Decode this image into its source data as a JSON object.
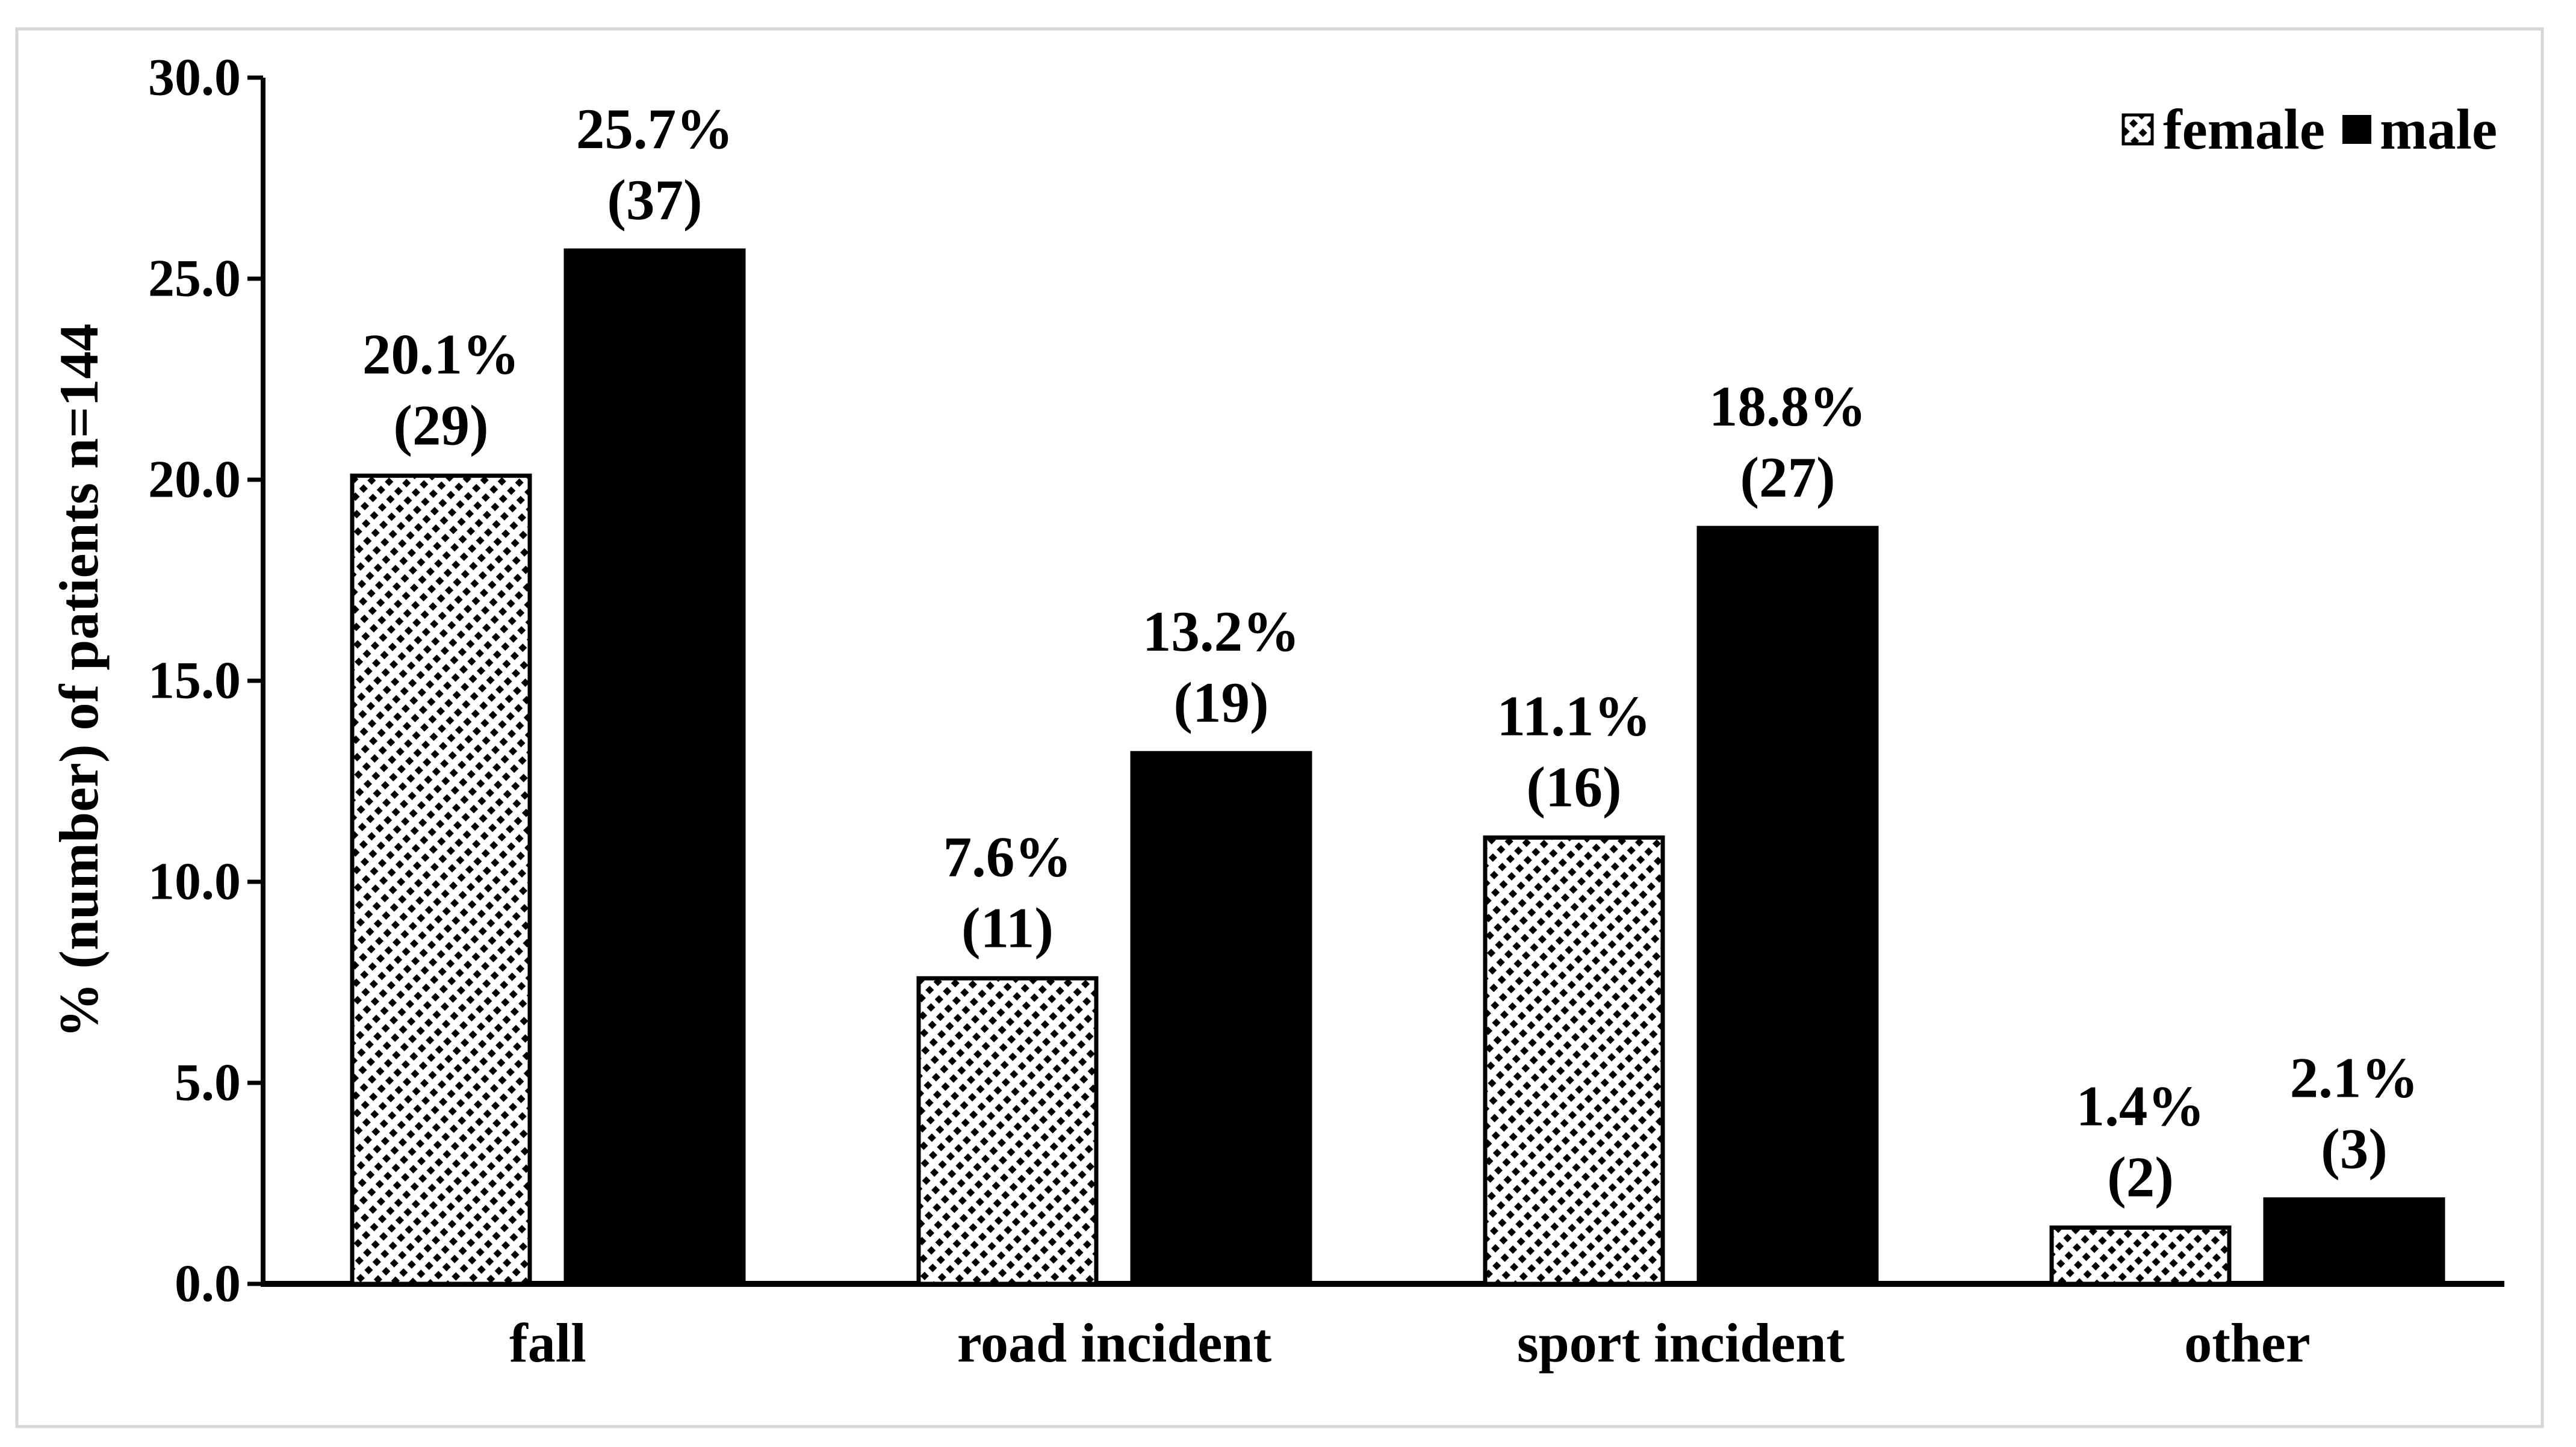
{
  "figure": {
    "background": "#ffffff",
    "frame_color": "#d6d6d6"
  },
  "chart_data": {
    "type": "bar",
    "title": "",
    "xlabel": "",
    "ylabel": "% (number) of patients n=144",
    "ylim": [
      0,
      30
    ],
    "yticks": [
      0,
      5,
      10,
      15,
      20,
      25,
      30
    ],
    "ytick_labels": [
      "0.0",
      "5.0",
      "10.0",
      "15.0",
      "20.0",
      "25.0",
      "30.0"
    ],
    "grid": false,
    "legend_position": "top-right",
    "bar_color": "#000000",
    "categories": [
      "fall",
      "road incident",
      "sport incident",
      "other"
    ],
    "series": [
      {
        "name": "female",
        "swatch": "diagonal-hatch",
        "values": [
          20.1,
          7.6,
          11.1,
          1.4
        ],
        "counts": [
          29,
          11,
          16,
          2
        ],
        "pct_labels": [
          "20.1%",
          "7.6%",
          "11.1%",
          "1.4%"
        ],
        "count_labels": [
          "(29)",
          "(11)",
          "(16)",
          "(2)"
        ]
      },
      {
        "name": "male",
        "swatch": "solid-black",
        "values": [
          25.7,
          13.2,
          18.8,
          2.1
        ],
        "counts": [
          37,
          19,
          27,
          3
        ],
        "pct_labels": [
          "25.7%",
          "13.2%",
          "18.8%",
          "2.1%"
        ],
        "count_labels": [
          "(37)",
          "(19)",
          "(27)",
          "(3)"
        ]
      }
    ]
  }
}
